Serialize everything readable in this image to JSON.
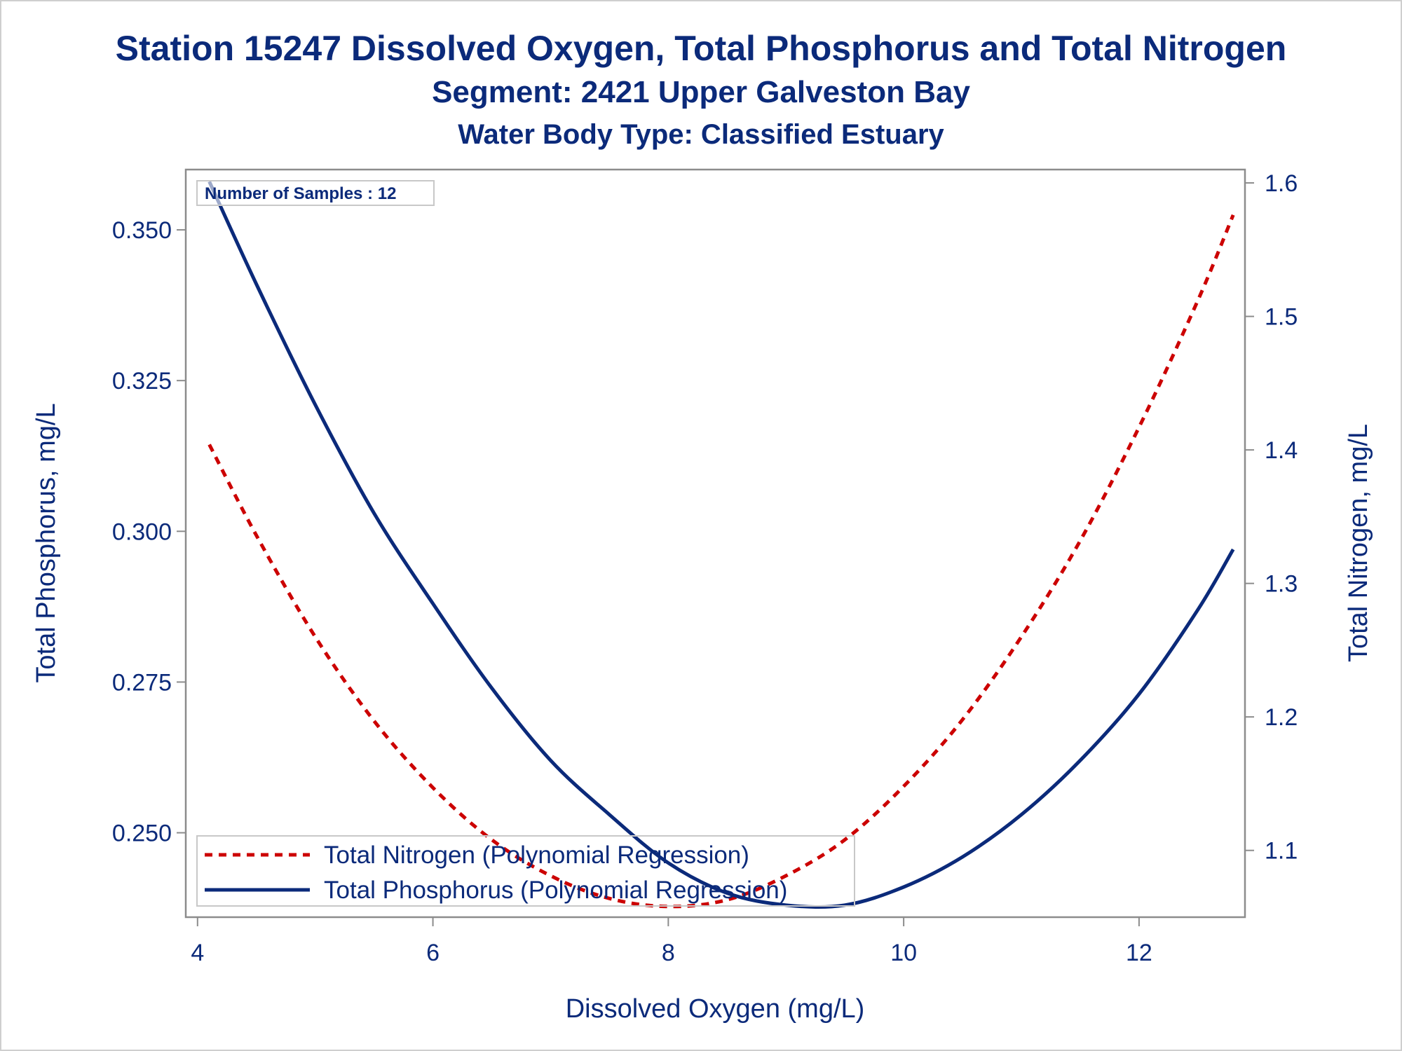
{
  "header": {
    "title": "Station 15247  Dissolved Oxygen, Total Phosphorus and Total Nitrogen",
    "subtitle": "Segment: 2421  Upper Galveston Bay",
    "subtitle2": "Water Body Type: Classified Estuary"
  },
  "inset_label": "Number of Samples : 12",
  "chart_data": {
    "type": "line",
    "xlabel": "Dissolved Oxygen (mg/L)",
    "ylabel": "Total Phosphorus, mg/L",
    "y2label": "Total Nitrogen, mg/L",
    "xlim": [
      3.9,
      12.9
    ],
    "ylim": [
      0.236,
      0.36
    ],
    "y2lim": [
      1.05,
      1.61
    ],
    "xticks": [
      "4",
      "6",
      "8",
      "10",
      "12"
    ],
    "yticks": [
      "0.250",
      "0.275",
      "0.300",
      "0.325",
      "0.350"
    ],
    "y2ticks": [
      "1.1",
      "1.2",
      "1.3",
      "1.4",
      "1.5",
      "1.6"
    ],
    "legend_position": "bottom-left inside",
    "series": [
      {
        "name": "Total Nitrogen (Polynomial Regression)",
        "axis": "y2",
        "style": "dashed",
        "color": "#cc0000",
        "x": [
          4.1,
          4.5,
          5.0,
          5.5,
          6.0,
          6.5,
          7.0,
          7.5,
          8.0,
          8.5,
          9.0,
          9.5,
          10.0,
          10.5,
          11.0,
          11.5,
          12.0,
          12.5,
          12.8
        ],
        "y": [
          1.404,
          1.336,
          1.26,
          1.197,
          1.147,
          1.108,
          1.081,
          1.064,
          1.058,
          1.063,
          1.081,
          1.108,
          1.148,
          1.198,
          1.26,
          1.332,
          1.417,
          1.512,
          1.576
        ]
      },
      {
        "name": "Total Phosphorus (Polynomial Regression)",
        "axis": "y",
        "style": "solid",
        "color": "#0b2a7a",
        "x": [
          4.1,
          4.5,
          5.0,
          5.5,
          6.0,
          6.5,
          7.0,
          7.5,
          8.0,
          8.5,
          9.0,
          9.5,
          10.0,
          10.5,
          11.0,
          11.5,
          12.0,
          12.5,
          12.8
        ],
        "y": [
          0.358,
          0.341,
          0.321,
          0.303,
          0.288,
          0.274,
          0.262,
          0.253,
          0.245,
          0.24,
          0.238,
          0.238,
          0.241,
          0.246,
          0.253,
          0.262,
          0.273,
          0.287,
          0.297
        ]
      }
    ]
  }
}
